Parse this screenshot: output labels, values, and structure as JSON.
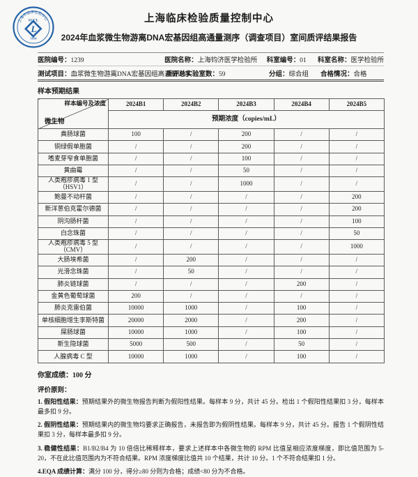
{
  "header": {
    "org_title": "上海临床检验质量控制中心",
    "report_title": "2024年血浆微生物游离DNA宏基因组高通量测序（调查项目）室间质评结果报告"
  },
  "logo": {
    "acronym": "SCCL",
    "year": "1954",
    "ring_text": "上海市临床检验中心",
    "monogram": "L",
    "color": "#2563a8"
  },
  "info": {
    "row1": [
      {
        "label": "医院编号：",
        "value": "1239"
      },
      {
        "label": "医院名称：",
        "value": "上海钧济医学检验所"
      },
      {
        "label": "科室编号：",
        "value": "01"
      },
      {
        "label": "科室名称：",
        "value": "医学检验所"
      }
    ],
    "row2": [
      {
        "label": "测试项目：",
        "value": "血浆微生物游离DNA宏基因组高通量测序"
      },
      {
        "label": "质评总实验室数：",
        "value": "59"
      },
      {
        "label": "分组：",
        "value": "综合组"
      },
      {
        "label": "合格情况：",
        "value": "合格"
      }
    ]
  },
  "section": {
    "title": "样本预期结果"
  },
  "table": {
    "corner": {
      "top": "样本编号及浓度",
      "bottom": "微生物"
    },
    "sample_headers": [
      "2024B1",
      "2024B2",
      "2024B3",
      "2024B4",
      "2024B5"
    ],
    "subheader": "预期浓度（copies/mL）",
    "rows": [
      {
        "name": "粪肠球菌",
        "values": [
          "100",
          "/",
          "200",
          "/",
          "/"
        ]
      },
      {
        "name": "铜绿假单胞菌",
        "values": [
          "/",
          "/",
          "200",
          "/",
          "/"
        ]
      },
      {
        "name": "嗜麦芽窄食单胞菌",
        "values": [
          "/",
          "/",
          "100",
          "/",
          "/"
        ]
      },
      {
        "name": "黄曲霉",
        "values": [
          "/",
          "/",
          "50",
          "/",
          "/"
        ]
      },
      {
        "name": "人类疱疹病毒 1 型（HSV1）",
        "values": [
          "/",
          "/",
          "1000",
          "/",
          "/"
        ]
      },
      {
        "name": "鲍曼不动杆菌",
        "values": [
          "/",
          "/",
          "/",
          "/",
          "200"
        ]
      },
      {
        "name": "新洋葱伯克霍尔德菌",
        "values": [
          "/",
          "/",
          "/",
          "/",
          "200"
        ]
      },
      {
        "name": "阴沟肠杆菌",
        "values": [
          "/",
          "/",
          "/",
          "/",
          "100"
        ]
      },
      {
        "name": "白念珠菌",
        "values": [
          "/",
          "/",
          "/",
          "/",
          "50"
        ]
      },
      {
        "name": "人类疱疹病毒 5 型（CMV）",
        "values": [
          "/",
          "/",
          "/",
          "/",
          "1000"
        ]
      },
      {
        "name": "大肠埃希菌",
        "values": [
          "/",
          "200",
          "/",
          "/",
          "/"
        ]
      },
      {
        "name": "光滑念珠菌",
        "values": [
          "/",
          "50",
          "/",
          "/",
          "/"
        ]
      },
      {
        "name": "肺炎链球菌",
        "values": [
          "/",
          "/",
          "/",
          "200",
          "/"
        ]
      },
      {
        "name": "金黄色葡萄球菌",
        "values": [
          "200",
          "/",
          "/",
          "/",
          "/"
        ]
      },
      {
        "name": "肺炎克雷伯菌",
        "values": [
          "10000",
          "1000",
          "/",
          "100",
          "/"
        ]
      },
      {
        "name": "单核细胞增生李斯特菌",
        "values": [
          "20000",
          "2000",
          "/",
          "200",
          "/"
        ]
      },
      {
        "name": "屎肠球菌",
        "values": [
          "10000",
          "1000",
          "/",
          "100",
          "/"
        ]
      },
      {
        "name": "新生隐球菌",
        "values": [
          "5000",
          "500",
          "/",
          "50",
          "/"
        ]
      },
      {
        "name": "人腺病毒 C 型",
        "values": [
          "10000",
          "1000",
          "/",
          "100",
          "/"
        ]
      }
    ]
  },
  "score": {
    "text": "你室成绩：100 分"
  },
  "criteria": {
    "title": "评价原则：",
    "items": [
      {
        "label": "1. 假阳性结果：",
        "text": "预期结果外的微生物报告判断为假阳性结果。每样本 9 分，共计 45 分。检出 1 个假阳性结果扣 3 分，每样本最多扣 9 分。"
      },
      {
        "label": "2. 假阴性结果：",
        "text": "预期结果内的微生物均要求正确报告，未报告即为假阴性结果。每样本 9 分，共计 45 分。报告 1 个假阴性结果扣 3 分，每样本最多扣 9 分。"
      },
      {
        "label": "3. 稳健性结果：",
        "text": "B1/B2/B4 为 10 倍倍比稀释样本，要求上述样本中各微生物的 RPM 比值呈相应浓度梯度，即比值范围为 5-20，不在此比值范围内为不符合结果。RPM 浓度梯度比值共 10 个结果，共计 10 分。1 个不符合结果扣 1 分。"
      },
      {
        "label": "4.EQA 成绩计算：",
        "text": "满分 100 分，得分≥80 分则为合格；成绩<80 分为不合格。"
      }
    ]
  }
}
